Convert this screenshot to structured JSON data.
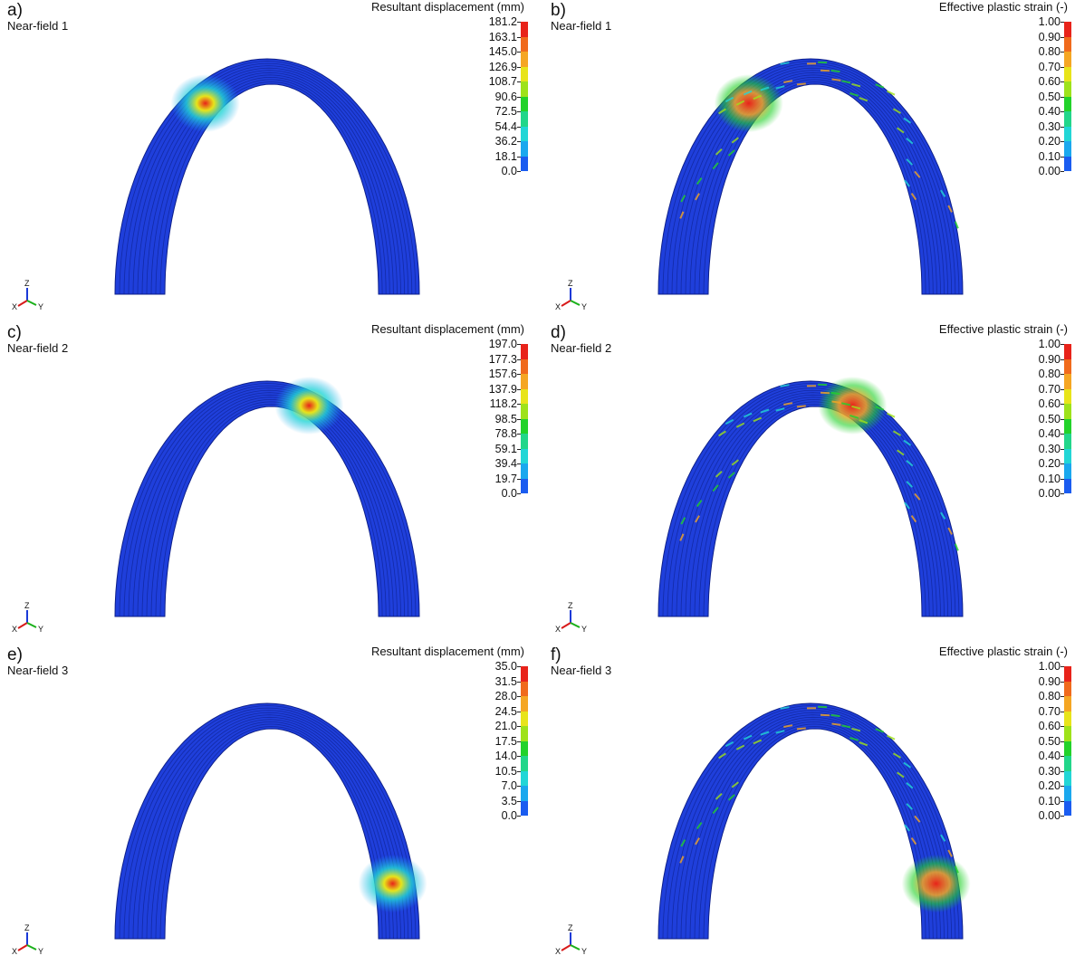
{
  "panels": [
    {
      "letter": "a)",
      "case": "Near-field 1",
      "legend_title": "Resultant displacement (mm)",
      "ticks": [
        "181.2",
        "163.1",
        "145.0",
        "126.9",
        "108.7",
        "90.6",
        "72.5",
        "54.4",
        "36.2",
        "18.1",
        "0.0"
      ],
      "field": "displacement",
      "damage_position": 0.33
    },
    {
      "letter": "b)",
      "case": "Near-field 1",
      "legend_title": "Effective plastic strain (-)",
      "ticks": [
        "1.00",
        "0.90",
        "0.80",
        "0.70",
        "0.60",
        "0.50",
        "0.40",
        "0.30",
        "0.20",
        "0.10",
        "0.00"
      ],
      "field": "strain",
      "damage_position": 0.33
    },
    {
      "letter": "c)",
      "case": "Near-field 2",
      "legend_title": "Resultant displacement (mm)",
      "ticks": [
        "197.0",
        "177.3",
        "157.6",
        "137.9",
        "118.2",
        "98.5",
        "78.8",
        "59.1",
        "39.4",
        "19.7",
        "0.0"
      ],
      "field": "displacement",
      "damage_position": 0.6
    },
    {
      "letter": "d)",
      "case": "Near-field 2",
      "legend_title": "Effective plastic strain (-)",
      "ticks": [
        "1.00",
        "0.90",
        "0.80",
        "0.70",
        "0.60",
        "0.50",
        "0.40",
        "0.30",
        "0.20",
        "0.10",
        "0.00"
      ],
      "field": "strain",
      "damage_position": 0.6
    },
    {
      "letter": "e)",
      "case": "Near-field 3",
      "legend_title": "Resultant displacement (mm)",
      "ticks": [
        "35.0",
        "31.5",
        "28.0",
        "24.5",
        "21.0",
        "17.5",
        "14.0",
        "10.5",
        "7.0",
        "3.5",
        "0.0"
      ],
      "field": "displacement",
      "damage_position": 0.92
    },
    {
      "letter": "f)",
      "case": "Near-field 3",
      "legend_title": "Effective plastic strain (-)",
      "ticks": [
        "1.00",
        "0.90",
        "0.80",
        "0.70",
        "0.60",
        "0.50",
        "0.40",
        "0.30",
        "0.20",
        "0.10",
        "0.00"
      ],
      "field": "strain",
      "damage_position": 0.92
    }
  ],
  "colorbar_colors": [
    "#e8231a",
    "#f06a1c",
    "#f5a623",
    "#e8e41a",
    "#9ee21a",
    "#22d22a",
    "#22d68a",
    "#22d6d6",
    "#1aa8ee",
    "#1a5cf0"
  ],
  "triad": {
    "z": "Z",
    "x": "X",
    "y": "Y"
  }
}
